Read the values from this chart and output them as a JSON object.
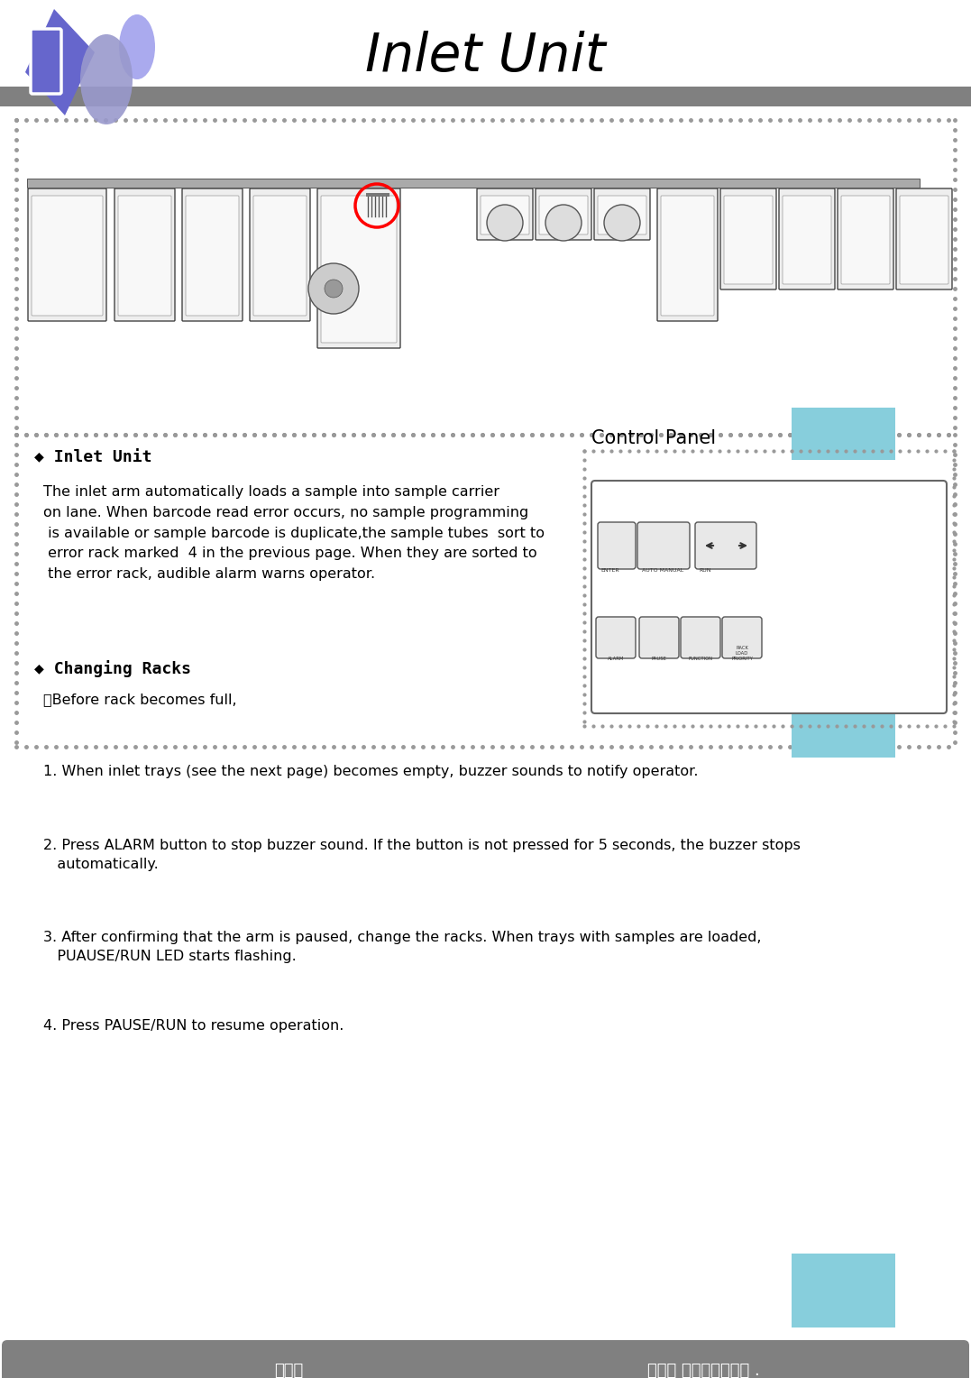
{
  "title": "Inlet Unit",
  "title_fontsize": 42,
  "bg_color": "#ffffff",
  "header_bar_color": "#808080",
  "footer_bar_color": "#808080",
  "footer_left": "Ｃ－５",
  "footer_right": "ＩＤＳ Ｃｏ．，Ｌｔｄ .",
  "cyan_color": "#87CEDC",
  "dot_color": "#999999",
  "section1_title": "◆ Inlet Unit",
  "section2_title": "◆ Changing Racks",
  "section2_sub": "･Before rack becomes full,",
  "item1": "1. When inlet trays (see the next page) becomes empty, buzzer sounds to notify operator.",
  "item2": "2. Press ALARM button to stop buzzer sound. If the button is not pressed for 5 seconds, the buzzer stops\n   automatically.",
  "item3": "3. After confirming that the arm is paused, change the racks. When trays with samples are loaded,\n   PUAUSE/RUN LED starts flashing.",
  "item4": "4. Press PAUSE/RUN to resume operation.",
  "control_panel_label": "Control Panel",
  "logo_color1": "#6666cc",
  "logo_color2": "#9999cc",
  "logo_color3": "#aaaaee"
}
